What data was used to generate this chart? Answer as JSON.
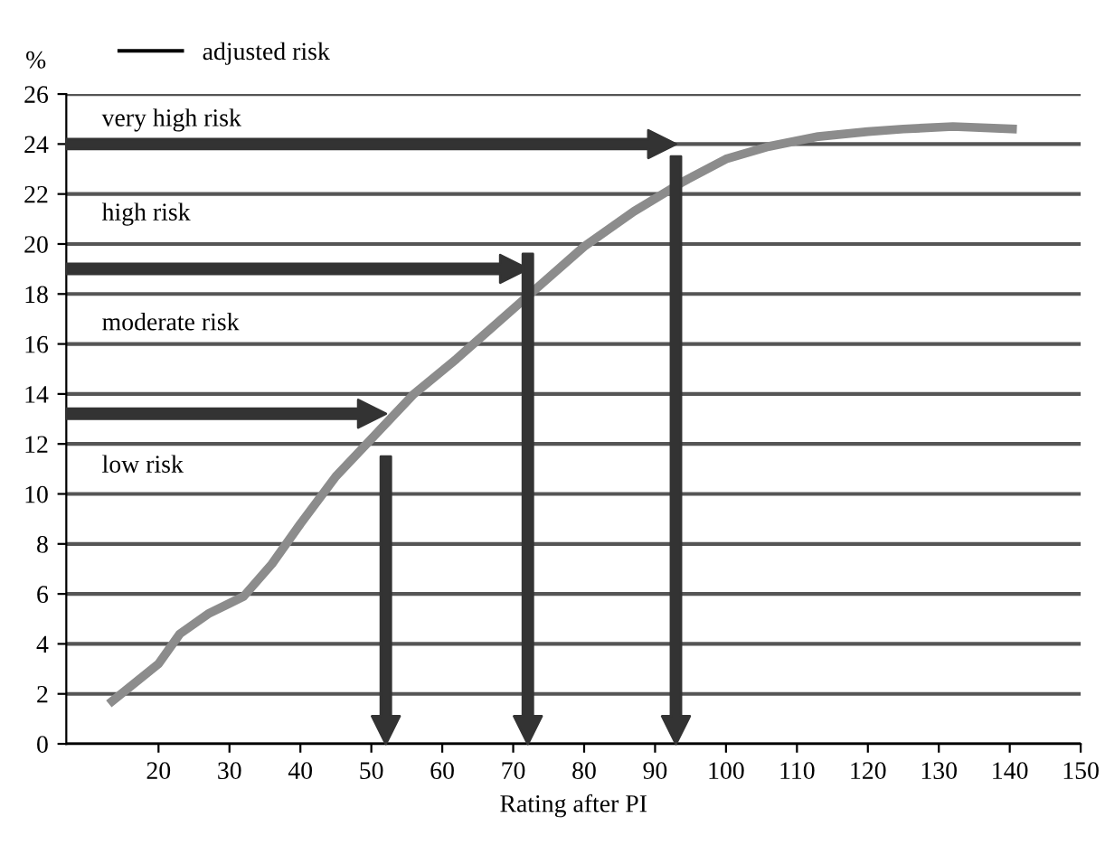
{
  "chart_data": {
    "type": "line",
    "xlabel": "Rating after PI",
    "ylabel": "%",
    "x": [
      13,
      20,
      23,
      27,
      32,
      36,
      40,
      45,
      51,
      56,
      62,
      68,
      74,
      80,
      87,
      94,
      100,
      106,
      113,
      120,
      125,
      132,
      141
    ],
    "series": [
      {
        "name": "adjusted risk",
        "color": "#8c8c8c",
        "values": [
          1.6,
          3.2,
          4.4,
          5.2,
          5.9,
          7.2,
          8.8,
          10.7,
          12.5,
          14.0,
          15.4,
          16.9,
          18.4,
          19.9,
          21.3,
          22.5,
          23.4,
          23.9,
          24.3,
          24.5,
          24.6,
          24.7,
          24.6
        ]
      }
    ],
    "xlim": [
      7,
      150
    ],
    "xticks": [
      20,
      30,
      40,
      50,
      60,
      70,
      80,
      90,
      100,
      110,
      120,
      130,
      140,
      150
    ],
    "ylim": [
      0,
      26
    ],
    "yticks": [
      0,
      2,
      4,
      6,
      8,
      10,
      12,
      14,
      16,
      18,
      20,
      22,
      24,
      26
    ],
    "grid": "y",
    "legend": "top left",
    "marker": "none",
    "line_style": "solid",
    "annotations": [
      "very high risk",
      "high risk",
      "moderate risk",
      "low risk"
    ]
  }
}
